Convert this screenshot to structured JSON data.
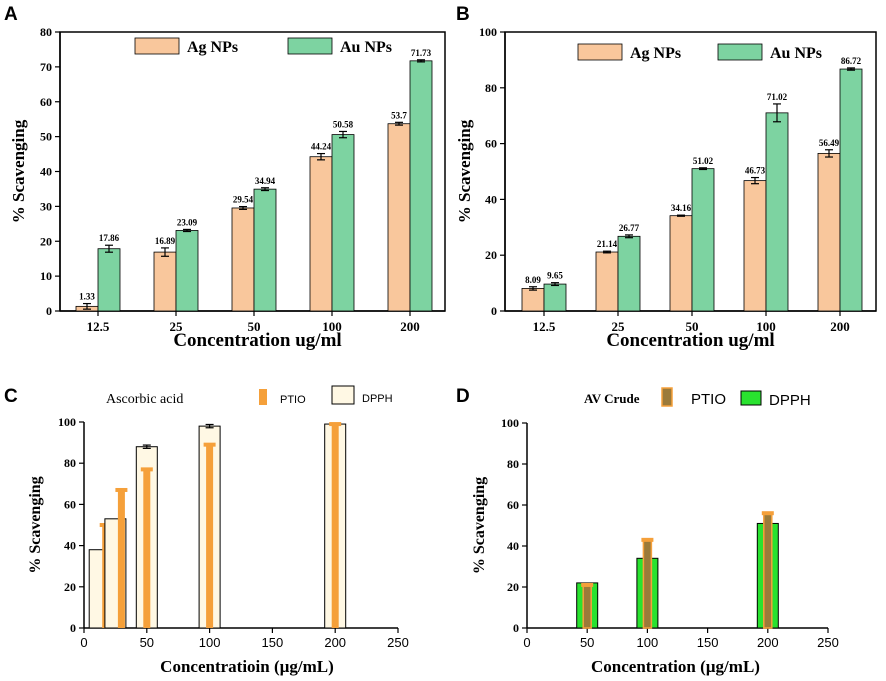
{
  "panels": [
    "A",
    "B",
    "C",
    "D"
  ],
  "chart_data": [
    {
      "id": "A",
      "type": "bar",
      "categories": [
        "12.5",
        "25",
        "50",
        "100",
        "200"
      ],
      "series": [
        {
          "name": "Ag NPs",
          "values": [
            1.33,
            16.89,
            29.54,
            44.24,
            53.7
          ],
          "labels": [
            "1.33",
            "16.89",
            "29.54",
            "44.24",
            "53.7"
          ],
          "errors": [
            0.8,
            1.2,
            0.4,
            0.9,
            0.4
          ],
          "color": "#f9c79c"
        },
        {
          "name": "Au NPs",
          "values": [
            17.86,
            23.09,
            34.94,
            50.58,
            71.73
          ],
          "labels": [
            "17.86",
            "23.09",
            "34.94",
            "50.58",
            "71.73"
          ],
          "errors": [
            1.0,
            0.3,
            0.4,
            0.9,
            0.3
          ],
          "color": "#7dd3a1"
        }
      ],
      "xlabel": "Concentration ug/ml",
      "ylabel": "% Scavenging",
      "ylim": [
        0,
        80
      ],
      "yticks": [
        "0",
        "10",
        "20",
        "30",
        "40",
        "50",
        "60",
        "70",
        "80"
      ]
    },
    {
      "id": "B",
      "type": "bar",
      "categories": [
        "12.5",
        "25",
        "50",
        "100",
        "200"
      ],
      "series": [
        {
          "name": "Ag NPs",
          "values": [
            8.09,
            21.14,
            34.16,
            46.73,
            56.49
          ],
          "labels": [
            "8.09",
            "21.14",
            "34.16",
            "46.73",
            "56.49"
          ],
          "errors": [
            0.6,
            0.3,
            0.2,
            1.1,
            1.3
          ],
          "color": "#f9c79c"
        },
        {
          "name": "Au NPs",
          "values": [
            9.65,
            26.77,
            51.02,
            71.02,
            86.72
          ],
          "labels": [
            "9.65",
            "26.77",
            "51.02",
            "71.02",
            "86.72"
          ],
          "errors": [
            0.5,
            0.5,
            0.3,
            3.2,
            0.4
          ],
          "color": "#7dd3a1"
        }
      ],
      "xlabel": "Concentration ug/ml",
      "ylabel": "% Scavenging",
      "ylim": [
        0,
        100
      ],
      "yticks": [
        "0",
        "20",
        "40",
        "60",
        "80",
        "100"
      ]
    },
    {
      "id": "C",
      "type": "bar",
      "legend_title": "Ascorbic acid",
      "x": [
        12.5,
        25,
        50,
        100,
        200
      ],
      "series": [
        {
          "name": "PTIO",
          "values": [
            50,
            67,
            77,
            89,
            99
          ],
          "color": "#f5a03a"
        },
        {
          "name": "DPPH",
          "values": [
            38,
            53,
            88,
            98,
            99
          ],
          "errors": [
            0,
            0,
            0.8,
            0.8,
            0
          ],
          "color": "#fff8e4"
        }
      ],
      "xlabel": "Concentratioin (µg/mL)",
      "ylabel": "% Scavenging",
      "xlim": [
        0,
        250
      ],
      "ylim": [
        0,
        100
      ],
      "xticks": [
        "0",
        "50",
        "100",
        "150",
        "200",
        "250"
      ],
      "yticks": [
        "0",
        "20",
        "40",
        "60",
        "80",
        "100"
      ]
    },
    {
      "id": "D",
      "type": "bar",
      "legend_title": "AV Crude",
      "x": [
        50,
        100,
        200
      ],
      "series": [
        {
          "name": "PTIO",
          "values": [
            21,
            43,
            56
          ],
          "color": "#9b7a3a"
        },
        {
          "name": "DPPH",
          "values": [
            22,
            34,
            51
          ],
          "color": "#29e22f"
        }
      ],
      "xlabel": "Concentration (µg/mL)",
      "ylabel": "% Scavenging",
      "xlim": [
        0,
        250
      ],
      "ylim": [
        0,
        100
      ],
      "xticks": [
        "0",
        "50",
        "100",
        "150",
        "200",
        "250"
      ],
      "yticks": [
        "0",
        "20",
        "40",
        "60",
        "80",
        "100"
      ]
    }
  ]
}
